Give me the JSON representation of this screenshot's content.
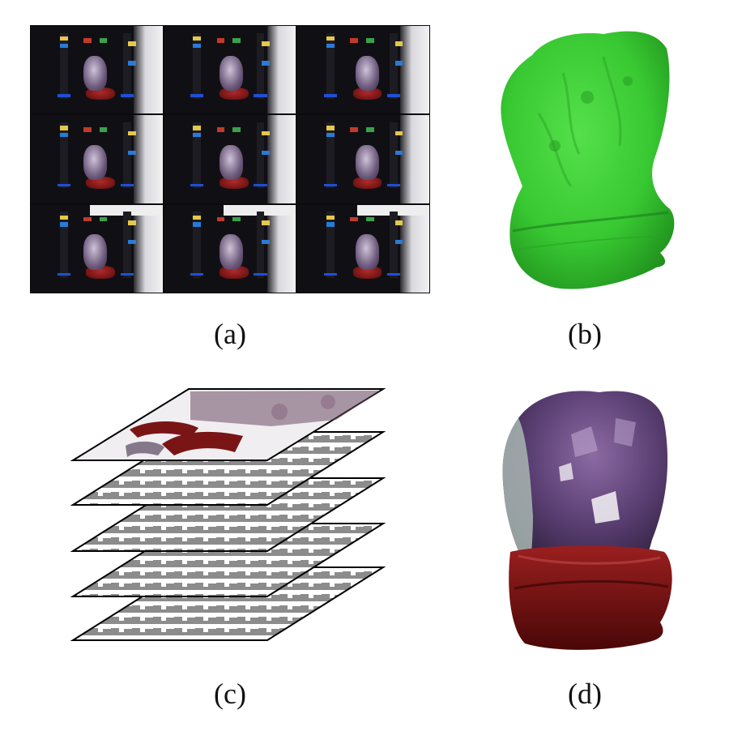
{
  "figure": {
    "panels": [
      {
        "id": "a",
        "caption": "(a)"
      },
      {
        "id": "b",
        "caption": "(b)"
      },
      {
        "id": "c",
        "caption": "(c)"
      },
      {
        "id": "d",
        "caption": "(d)"
      }
    ]
  },
  "colors": {
    "mesh_green": "#3fcf3a",
    "crystal_purple": "#5a3f73",
    "base_red": "#7a1010",
    "layer_gray": "#8c8c8c"
  }
}
